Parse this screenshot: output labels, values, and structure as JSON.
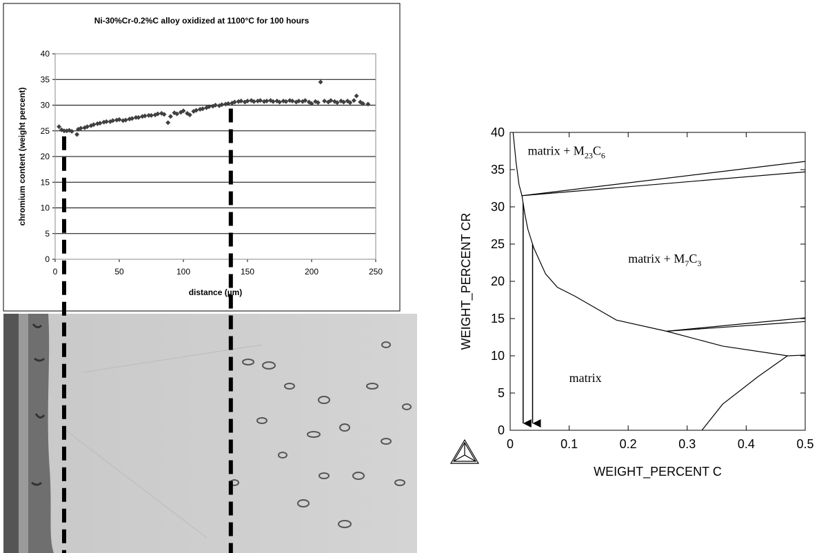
{
  "chart_data": [
    {
      "type": "scatter",
      "title": "Ni-30%Cr-0.2%C alloy oxidized at 1100°C for 100 hours",
      "x_label": "distance (µm)",
      "y_label": "chromium content (weight percent)",
      "color": "#404040",
      "x": [
        3,
        5,
        7,
        9,
        11,
        13,
        17,
        18,
        20,
        23,
        25,
        28,
        30,
        33,
        35,
        38,
        40,
        43,
        45,
        48,
        50,
        53,
        55,
        58,
        60,
        63,
        65,
        68,
        70,
        73,
        75,
        78,
        80,
        83,
        85,
        88,
        90,
        93,
        95,
        98,
        100,
        103,
        105,
        108,
        110,
        113,
        115,
        118,
        120,
        123,
        125,
        128,
        130,
        133,
        135,
        138,
        140,
        143,
        145,
        148,
        150,
        153,
        155,
        158,
        160,
        163,
        165,
        168,
        170,
        173,
        175,
        178,
        180,
        183,
        185,
        188,
        190,
        193,
        195,
        198,
        200,
        203,
        205,
        207,
        210,
        213,
        215,
        218,
        220,
        223,
        225,
        228,
        230,
        233,
        235,
        238,
        240,
        244
      ],
      "values": [
        25.8,
        25.2,
        25,
        25,
        25.1,
        24.9,
        24.3,
        25.3,
        25.5,
        25.6,
        25.8,
        26,
        26.2,
        26.4,
        26.5,
        26.7,
        26.8,
        26.8,
        27,
        27.1,
        27.2,
        27,
        27.1,
        27.3,
        27.4,
        27.6,
        27.6,
        27.8,
        27.9,
        28,
        28,
        28.1,
        28.3,
        28.4,
        28.2,
        26.6,
        27.8,
        28.5,
        28.3,
        28.6,
        28.9,
        28.4,
        28.1,
        28.8,
        29,
        29.2,
        29.3,
        29.5,
        29.7,
        29.8,
        30,
        29.9,
        30.1,
        30.2,
        30.3,
        30.4,
        30.6,
        30.7,
        30.8,
        30.6,
        30.8,
        30.9,
        30.7,
        30.8,
        30.9,
        30.7,
        30.8,
        30.9,
        30.7,
        30.8,
        30.6,
        30.8,
        30.7,
        30.9,
        30.8,
        30.6,
        30.8,
        30.7,
        30.9,
        30.6,
        30.3,
        30.7,
        30.5,
        34.5,
        30.8,
        30.6,
        30.9,
        30.7,
        30.5,
        30.8,
        30.6,
        30.8,
        30.5,
        30.9,
        31.8,
        30.6,
        30.3,
        30.2
      ],
      "xlim": [
        0,
        250
      ],
      "xticks": [
        0,
        50,
        100,
        150,
        200,
        250
      ],
      "ylim": [
        0,
        40
      ],
      "yticks": [
        0,
        5,
        10,
        15,
        20,
        25,
        30,
        35,
        40
      ],
      "grid": true,
      "vlines": [
        {
          "x": 7,
          "y": 25
        },
        {
          "x": 137,
          "y": 30.4
        }
      ]
    },
    {
      "type": "line",
      "x_label": "WEIGHT_PERCENT C",
      "y_label": "WEIGHT_PERCENT CR",
      "xlim": [
        0,
        0.5
      ],
      "xticks": [
        0,
        0.1,
        0.2,
        0.3,
        0.4,
        0.5
      ],
      "ylim": [
        0,
        40
      ],
      "yticks": [
        0,
        5,
        10,
        15,
        20,
        25,
        30,
        35,
        40
      ],
      "series": [
        {
          "color": "#000000",
          "x": [
            0.005,
            0.01,
            0.015,
            0.02,
            0.025,
            0.03,
            0.04,
            0.06,
            0.08,
            0.11,
            0.18,
            0.265,
            0.36,
            0.47,
            0.5
          ],
          "values": [
            40,
            36,
            33,
            31.5,
            29,
            27,
            24.5,
            21,
            19.2,
            18,
            14.8,
            13.3,
            11.3,
            10,
            10.1
          ]
        },
        {
          "color": "#000000",
          "x": [
            0.02,
            0.5
          ],
          "values": [
            31.5,
            36.1
          ]
        },
        {
          "color": "#000000",
          "x": [
            0.02,
            0.5
          ],
          "values": [
            31.5,
            34.7
          ]
        },
        {
          "color": "#000000",
          "x": [
            0.265,
            0.5
          ],
          "values": [
            13.3,
            15.1
          ]
        },
        {
          "color": "#000000",
          "x": [
            0.265,
            0.5
          ],
          "values": [
            13.3,
            14.6
          ]
        },
        {
          "color": "#000000",
          "x": [
            0.325,
            0.36,
            0.42,
            0.47
          ],
          "values": [
            0,
            3.5,
            7.2,
            10
          ]
        }
      ],
      "arrows": [
        {
          "x": 0.022,
          "y": 30.5
        },
        {
          "x": 0.038,
          "y": 25
        }
      ],
      "annotations": [
        {
          "parts": [
            "matrix + M",
            "23",
            "C",
            "6"
          ]
        },
        {
          "parts": [
            "matrix + M",
            "7",
            "C",
            "3"
          ]
        },
        {
          "parts": [
            "matrix"
          ]
        }
      ]
    }
  ]
}
